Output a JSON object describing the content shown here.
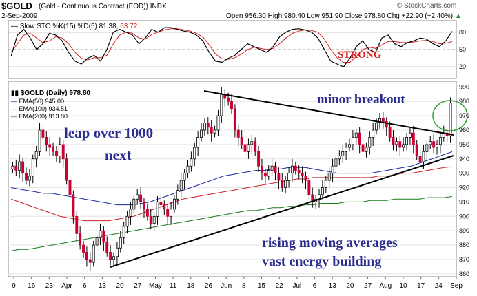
{
  "header": {
    "symbol": "$GOLD",
    "name": "(Gold - Continuous Contract (EOD))",
    "exchange": "INDX",
    "source": "© StockCharts.com",
    "date": "2-Sep-2009",
    "ohlc": "Open 956.30   High 980.40   Low 951.90   Close 978.80   Chg +22.90 (+2.40%)",
    "ohlc_arrow": "▲"
  },
  "sto": {
    "label": "Slow STO %K(15) %D(5)",
    "k_value": "81.38",
    "d_value": "63.72",
    "ticks": [
      "80",
      "50",
      "20"
    ],
    "annotation": "STRONG"
  },
  "price": {
    "legend_title": "$GOLD (Daily) 978.80",
    "ema50": "EMA(50) 945.00",
    "ema100": "EMA(100) 934.51",
    "ema200": "EMA(200) 913.80",
    "y_ticks": [
      "990",
      "980",
      "970",
      "960",
      "950",
      "940",
      "930",
      "920",
      "910",
      "900",
      "890",
      "880",
      "870",
      "860"
    ]
  },
  "annotations": {
    "minor_breakout": "minor breakout",
    "leap_line1": "leap over 1000",
    "leap_line2": "next",
    "rising_line1": "rising moving averages",
    "rising_line2": "vast energy building"
  },
  "x_labels": [
    "9",
    "16",
    "23",
    "Apr",
    "6",
    "13",
    "20",
    "27",
    "May",
    "11",
    "18",
    "26",
    "Jun",
    "8",
    "15",
    "22",
    "Jul",
    "6",
    "13",
    "20",
    "27",
    "Aug",
    "10",
    "17",
    "24",
    "Sep"
  ],
  "colors": {
    "up": "#000000",
    "down": "#cc0033",
    "ema50": "#1a2a9c",
    "ema100": "#cc2020",
    "ema200": "#1a7a1a",
    "sto_k": "#000000",
    "sto_d": "#d42020",
    "annotation_blue": "#2b2d8e",
    "breakout_circle": "#2e9e2e"
  },
  "chart_data": {
    "type": "candlestick",
    "ylim": [
      858,
      994
    ],
    "sto_ylim": [
      0,
      100
    ],
    "closes": [
      935,
      932,
      938,
      930,
      925,
      928,
      940,
      945,
      960,
      955,
      950,
      948,
      945,
      942,
      950,
      940,
      925,
      915,
      900,
      888,
      880,
      875,
      870,
      868,
      880,
      885,
      890,
      882,
      875,
      870,
      872,
      878,
      885,
      893,
      900,
      905,
      912,
      915,
      910,
      905,
      900,
      895,
      900,
      910,
      908,
      905,
      900,
      905,
      912,
      918,
      925,
      930,
      935,
      940,
      948,
      955,
      960,
      965,
      962,
      958,
      960,
      970,
      985,
      982,
      980,
      975,
      960,
      955,
      950,
      945,
      950,
      952,
      945,
      935,
      930,
      928,
      932,
      935,
      930,
      925,
      920,
      925,
      930,
      935,
      932,
      930,
      928,
      925,
      915,
      910,
      912,
      915,
      920,
      925,
      930,
      935,
      940,
      942,
      945,
      948,
      950,
      955,
      958,
      950,
      945,
      948,
      955,
      960,
      965,
      968,
      966,
      962,
      955,
      950,
      952,
      948,
      950,
      955,
      958,
      950,
      942,
      938,
      945,
      950,
      952,
      948,
      950,
      955,
      958,
      956,
      978.8
    ],
    "ema50": [
      920,
      919,
      918,
      917,
      916,
      916,
      915,
      914,
      913,
      912,
      911,
      910,
      909,
      908,
      908,
      908,
      909,
      910,
      912,
      914,
      916,
      918,
      920,
      922,
      924,
      926,
      928,
      929,
      930,
      931,
      932,
      932,
      933,
      933,
      934,
      934,
      934,
      933,
      932,
      931,
      930,
      930,
      930,
      930,
      930,
      931,
      932,
      933,
      934,
      935,
      937,
      939,
      941,
      943,
      945
    ],
    "ema100": [
      912,
      910,
      908,
      906,
      904,
      902,
      900,
      899,
      898,
      897,
      897,
      897,
      897,
      898,
      899,
      900,
      902,
      904,
      906,
      908,
      910,
      912,
      913,
      914,
      915,
      916,
      917,
      918,
      919,
      920,
      921,
      922,
      923,
      924,
      925,
      926,
      926,
      927,
      927,
      927,
      927,
      927,
      927,
      927,
      927,
      928,
      928,
      929,
      930,
      930,
      931,
      932,
      933,
      934,
      934.51
    ],
    "ema200": [
      876,
      877,
      877,
      878,
      879,
      880,
      881,
      882,
      883,
      884,
      885,
      886,
      887,
      888,
      889,
      890,
      891,
      892,
      893,
      894,
      895,
      896,
      897,
      898,
      899,
      900,
      901,
      902,
      903,
      904,
      904,
      905,
      906,
      906,
      907,
      907,
      908,
      908,
      909,
      909,
      909,
      910,
      910,
      910,
      911,
      911,
      911,
      912,
      912,
      912,
      912,
      913,
      913,
      913,
      913.8
    ],
    "sto_k": [
      38,
      75,
      85,
      70,
      50,
      60,
      78,
      75,
      65,
      45,
      30,
      25,
      35,
      40,
      30,
      50,
      80,
      85,
      80,
      75,
      60,
      70,
      85,
      80,
      88,
      88,
      85,
      82,
      80,
      75,
      65,
      45,
      30,
      28,
      35,
      40,
      50,
      60,
      55,
      50,
      45,
      55,
      72,
      80,
      85,
      86,
      84,
      80,
      70,
      50,
      30,
      25,
      20,
      35,
      55,
      65,
      50,
      45,
      70,
      75,
      60,
      55,
      62,
      65,
      70,
      68,
      60,
      55,
      65,
      81.38
    ],
    "sto_d": [
      45,
      60,
      75,
      78,
      70,
      62,
      65,
      72,
      70,
      60,
      45,
      35,
      32,
      36,
      36,
      40,
      60,
      75,
      80,
      78,
      70,
      68,
      76,
      80,
      84,
      86,
      86,
      84,
      82,
      78,
      72,
      58,
      42,
      34,
      33,
      36,
      42,
      50,
      54,
      52,
      50,
      52,
      60,
      70,
      78,
      82,
      84,
      83,
      80,
      68,
      50,
      36,
      28,
      28,
      38,
      50,
      54,
      52,
      58,
      64,
      64,
      62,
      62,
      63,
      65,
      66,
      64,
      60,
      61,
      63.72
    ]
  }
}
